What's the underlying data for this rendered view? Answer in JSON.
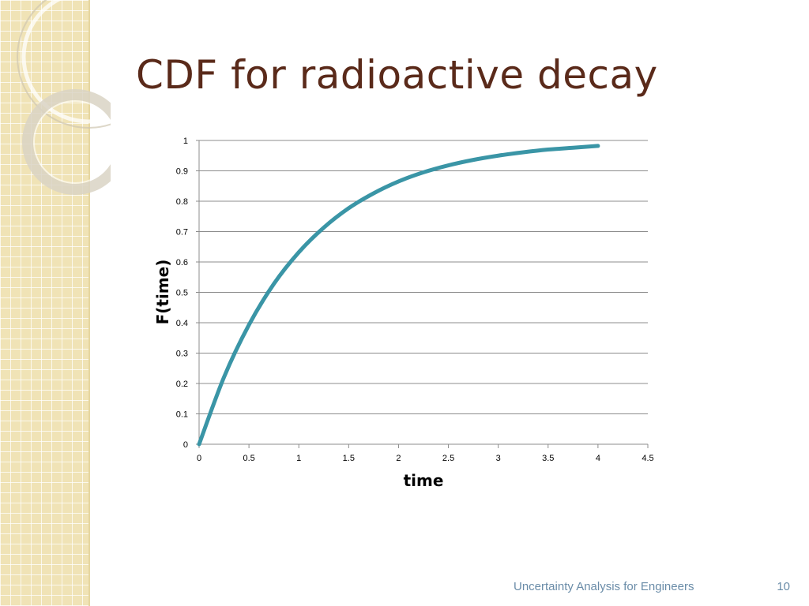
{
  "slide": {
    "title": "CDF for radioactive decay",
    "footer": "Uncertainty Analysis for Engineers",
    "page_number": "10"
  },
  "colors": {
    "title": "#5a2a1a",
    "curve": "#3a95a6",
    "gridline": "#8c8c8c",
    "footer": "#6a8ca8",
    "side_strip": "#f0e3b6"
  },
  "chart_data": {
    "type": "line",
    "title": "",
    "xlabel": "time",
    "ylabel": "F(time)",
    "xlim": [
      0,
      4.5
    ],
    "ylim": [
      0,
      1
    ],
    "x_ticks": [
      "0",
      "0.5",
      "1",
      "1.5",
      "2",
      "2.5",
      "3",
      "3.5",
      "4",
      "4.5"
    ],
    "y_ticks": [
      "0",
      "0.1",
      "0.2",
      "0.3",
      "0.4",
      "0.5",
      "0.6",
      "0.7",
      "0.8",
      "0.9",
      "1"
    ],
    "grid": "horizontal",
    "legend": "none",
    "series": [
      {
        "color": "#3a95a6",
        "x": [
          0,
          0.25,
          0.5,
          0.75,
          1,
          1.25,
          1.5,
          1.75,
          2,
          2.25,
          2.5,
          2.75,
          3,
          3.25,
          3.5,
          3.75,
          4
        ],
        "y": [
          0,
          0.221,
          0.393,
          0.528,
          0.632,
          0.713,
          0.777,
          0.826,
          0.865,
          0.895,
          0.918,
          0.936,
          0.95,
          0.961,
          0.97,
          0.976,
          0.982
        ]
      }
    ]
  }
}
